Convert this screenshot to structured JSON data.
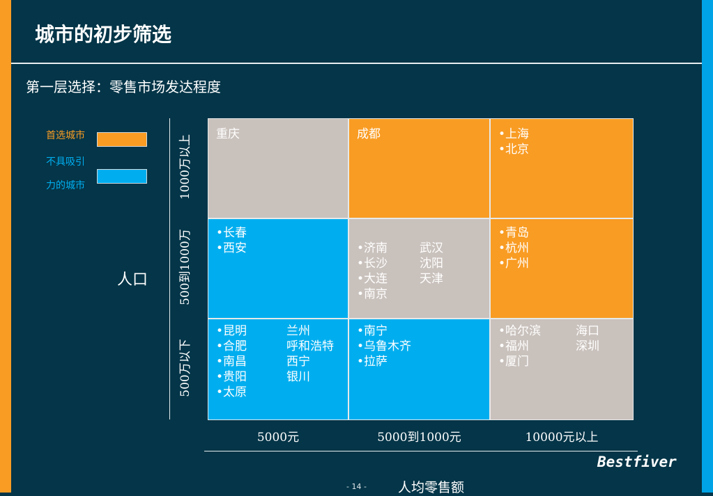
{
  "slide": {
    "title": "城市的初步筛选",
    "subtitle": "第一层选择：零售市场发达程度",
    "page_number": "- 14 -",
    "brand": "Bestfiver"
  },
  "colors": {
    "background": "#043548",
    "orange": "#f99c23",
    "blue": "#00aeef",
    "gray": "#c9c1bc"
  },
  "legend": {
    "preferred": {
      "label": "首选城市",
      "color": "#f99c23"
    },
    "unattractive": {
      "label_line1": "不具吸引",
      "label_line2": "力的城市",
      "color": "#00aeef"
    }
  },
  "y_axis": {
    "title": "人口",
    "rows": [
      "1000万以上",
      "500到1000万",
      "500万以下"
    ]
  },
  "x_axis": {
    "title": "人均零售额",
    "columns": [
      "5000元",
      "5000到1000元",
      "10000元以上"
    ]
  },
  "matrix": {
    "r0c0": {
      "l0a": "重庆"
    },
    "r0c1": {
      "l0a": "成都"
    },
    "r0c2": {
      "l0a": "•上海",
      "l1a": "•北京"
    },
    "r1c0": {
      "l0a": "•长春",
      "l1a": "•西安"
    },
    "r1c1": {
      "l0a": "•济南",
      "l0b": "武汉",
      "l1a": "•长沙",
      "l1b": "沈阳",
      "l2a": "•大连",
      "l2b": "天津",
      "l3a": "•南京"
    },
    "r1c2": {
      "l0a": "•青岛",
      "l1a": "•杭州",
      "l2a": "•广州"
    },
    "r2c0": {
      "l0a": "•昆明",
      "l0b": "兰州",
      "l1a": "•合肥",
      "l1b": "呼和浩特",
      "l2a": "•南昌",
      "l2b": "西宁",
      "l3a": "•贵阳",
      "l3b": "银川",
      "l4a": "•太原"
    },
    "r2c1": {
      "l0a": "•南宁",
      "l1a": "•乌鲁木齐",
      "l2a": "•拉萨"
    },
    "r2c2": {
      "l0a": "•哈尔滨",
      "l0b": "海口",
      "l1a": "•福州",
      "l1b": "深圳",
      "l2a": "•厦门"
    }
  }
}
